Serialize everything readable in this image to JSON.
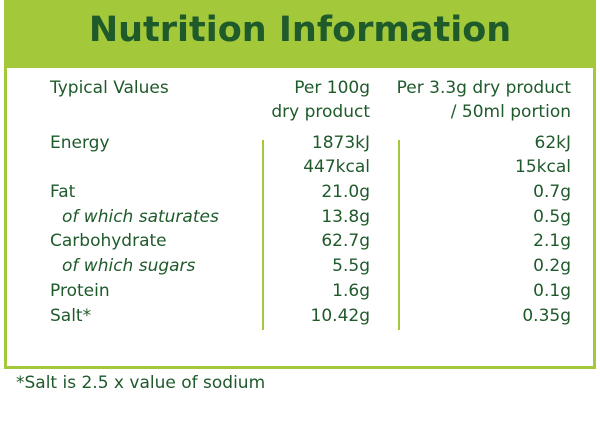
{
  "header": {
    "title": "Nutrition Information"
  },
  "table": {
    "columns": [
      [
        "Typical Values"
      ],
      [
        "Per 100g",
        "dry product"
      ],
      [
        "Per 3.3g dry product",
        "/ 50ml portion"
      ]
    ],
    "rows": [
      {
        "label": "Energy",
        "cells": [
          [
            "1873kJ",
            "447kcal"
          ],
          [
            "62kJ",
            "15kcal"
          ]
        ]
      },
      {
        "label": "Fat",
        "cells": [
          [
            "21.0g"
          ],
          [
            "0.7g"
          ]
        ]
      },
      {
        "label": "of which saturates",
        "cells": [
          [
            "13.8g"
          ],
          [
            "0.5g"
          ]
        ]
      },
      {
        "label": "Carbohydrate",
        "cells": [
          [
            "62.7g"
          ],
          [
            "2.1g"
          ]
        ]
      },
      {
        "label": "of which sugars",
        "cells": [
          [
            "5.5g"
          ],
          [
            "0.2g"
          ]
        ]
      },
      {
        "label": "Protein",
        "cells": [
          [
            "1.6g"
          ],
          [
            "0.1g"
          ]
        ]
      },
      {
        "label": "Salt*",
        "cells": [
          [
            "10.42g"
          ],
          [
            "0.35g"
          ]
        ]
      }
    ]
  },
  "footnote": "*Salt is 2.5 x value of sodium"
}
